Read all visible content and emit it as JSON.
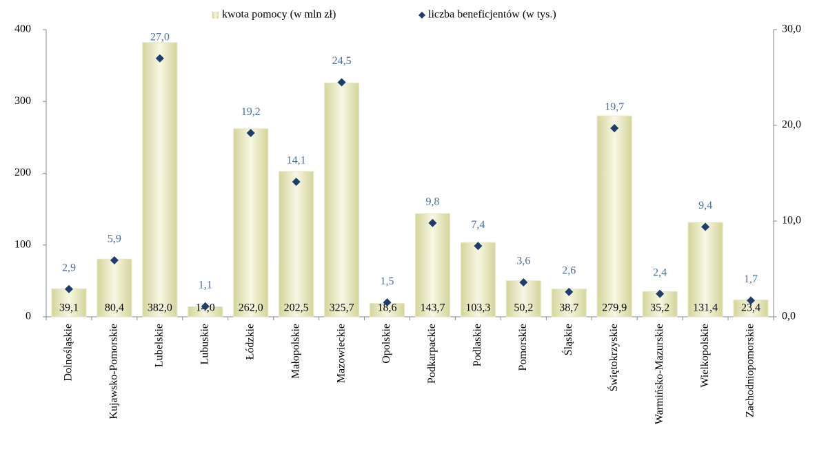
{
  "chart_data": {
    "type": "bar",
    "categories": [
      "Dolnośląskie",
      "Kujawsko-Pomorskie",
      "Lubelskie",
      "Lubuskie",
      "Łódzkie",
      "Małopolskie",
      "Mazowieckie",
      "Opolskie",
      "Podkarpackie",
      "Podlaskie",
      "Pomorskie",
      "Śląskie",
      "Świętokrzyskie",
      "Warmińsko-Mazurskie",
      "Wielkopolskie",
      "Zachodniopomorskie"
    ],
    "series": [
      {
        "name": "kwota pomocy (w mln zł)",
        "color": "#d4d49a",
        "values": [
          39.1,
          80.4,
          382.0,
          14.0,
          262.0,
          202.5,
          325.7,
          18.6,
          143.7,
          103.3,
          50.2,
          38.7,
          279.9,
          35.2,
          131.4,
          23.4
        ],
        "value_labels": [
          "39,1",
          "80,4",
          "382,0",
          "14,0",
          "262,0",
          "202,5",
          "325,7",
          "18,6",
          "143,7",
          "103,3",
          "50,2",
          "38,7",
          "279,9",
          "35,2",
          "131,4",
          "23,4"
        ]
      },
      {
        "name": "liczba beneficjentów (w tys.)",
        "color": "#1f3d6b",
        "axis": "y2",
        "marker": "diamond",
        "values": [
          2.9,
          5.9,
          27.0,
          1.1,
          19.2,
          14.1,
          24.5,
          1.5,
          9.8,
          7.4,
          3.6,
          2.6,
          19.7,
          2.4,
          9.4,
          1.7
        ],
        "value_labels": [
          "2,9",
          "5,9",
          "27,0",
          "1,1",
          "19,2",
          "14,1",
          "24,5",
          "1,5",
          "9,8",
          "7,4",
          "3,6",
          "2,6",
          "19,7",
          "2,4",
          "9,4",
          "1,7"
        ]
      }
    ],
    "ylim": [
      0,
      400
    ],
    "yticks": [
      0,
      100,
      200,
      300,
      400
    ],
    "y2lim": [
      0,
      30
    ],
    "y2ticks": [
      {
        "value": 0,
        "label": "0,0"
      },
      {
        "value": 10,
        "label": "10,0"
      },
      {
        "value": 20,
        "label": "20,0"
      },
      {
        "value": 30,
        "label": "30,0"
      }
    ],
    "legend": "top"
  }
}
